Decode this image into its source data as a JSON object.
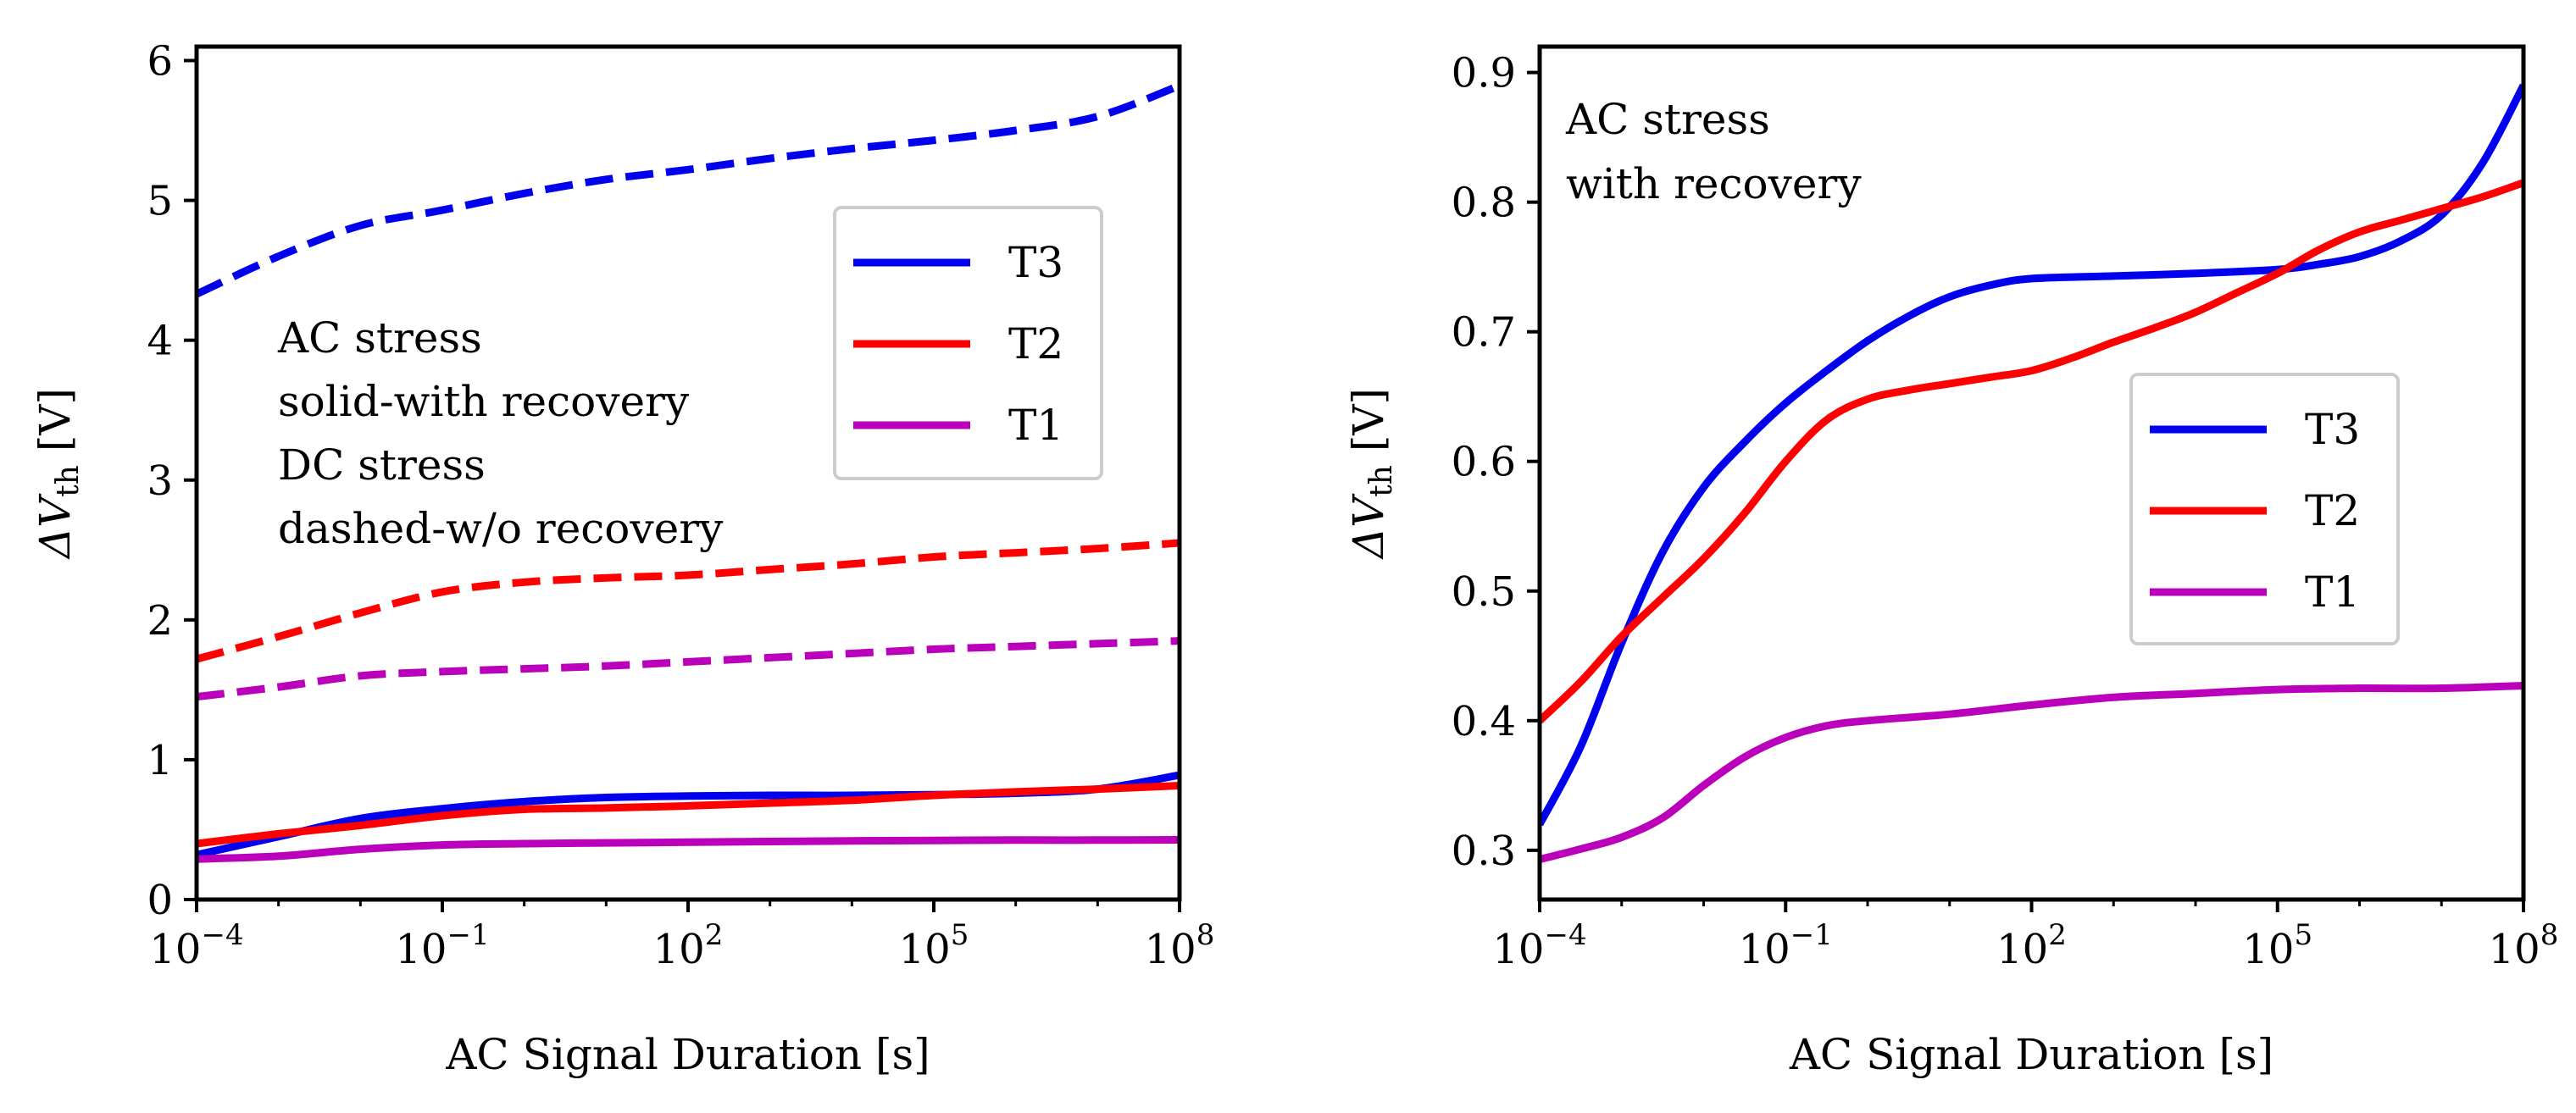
{
  "chart_data": [
    {
      "type": "line",
      "title": "",
      "xlabel": "AC Signal Duration [s]",
      "ylabel": "ΔV_th [V]",
      "xscale": "log",
      "xlim_exp": [
        -4,
        8
      ],
      "ylim": [
        0,
        6.1
      ],
      "xticks": [
        {
          "base": "10",
          "exp": "−4",
          "v": -4
        },
        {
          "base": "10",
          "exp": "−1",
          "v": -1
        },
        {
          "base": "10",
          "exp": "2",
          "v": 2
        },
        {
          "base": "10",
          "exp": "5",
          "v": 5
        },
        {
          "base": "10",
          "exp": "8",
          "v": 8
        }
      ],
      "yticks": [
        {
          "label": "0",
          "v": 0
        },
        {
          "label": "1",
          "v": 1
        },
        {
          "label": "2",
          "v": 2
        },
        {
          "label": "3",
          "v": 3
        },
        {
          "label": "4",
          "v": 4
        },
        {
          "label": "5",
          "v": 5
        },
        {
          "label": "6",
          "v": 6
        }
      ],
      "annotation": [
        "AC stress",
        "solid-with recovery",
        "DC stress",
        "dashed-w/o recovery"
      ],
      "legend": {
        "position": "upper-right",
        "entries": [
          "T3",
          "T2",
          "T1"
        ]
      },
      "series": [
        {
          "name": "T3",
          "style": "solid",
          "color": "#0000ee",
          "log10x": [
            -4,
            -3,
            -2,
            -1,
            0,
            1,
            2,
            3,
            4,
            5,
            6,
            7,
            8
          ],
          "y": [
            0.32,
            0.45,
            0.58,
            0.65,
            0.7,
            0.73,
            0.74,
            0.745,
            0.745,
            0.75,
            0.76,
            0.79,
            0.89
          ]
        },
        {
          "name": "T2",
          "style": "solid",
          "color": "#ff0000",
          "log10x": [
            -4,
            -3,
            -2,
            -1,
            0,
            1,
            2,
            3,
            4,
            5,
            6,
            7,
            8
          ],
          "y": [
            0.4,
            0.47,
            0.53,
            0.6,
            0.645,
            0.655,
            0.67,
            0.69,
            0.71,
            0.745,
            0.77,
            0.79,
            0.815
          ]
        },
        {
          "name": "T1",
          "style": "solid",
          "color": "#bb00bb",
          "log10x": [
            -4,
            -3,
            -2,
            -1,
            0,
            1,
            2,
            3,
            4,
            5,
            6,
            7,
            8
          ],
          "y": [
            0.29,
            0.31,
            0.36,
            0.39,
            0.4,
            0.405,
            0.41,
            0.415,
            0.42,
            0.423,
            0.425,
            0.425,
            0.427
          ]
        },
        {
          "name": "T3",
          "style": "dashed",
          "color": "#0000ee",
          "log10x": [
            -4,
            -3,
            -2,
            -1,
            0,
            1,
            2,
            3,
            4,
            5,
            6,
            7,
            8
          ],
          "y": [
            4.33,
            4.6,
            4.82,
            4.93,
            5.05,
            5.15,
            5.22,
            5.3,
            5.37,
            5.43,
            5.5,
            5.6,
            5.82
          ]
        },
        {
          "name": "T2",
          "style": "dashed",
          "color": "#ff0000",
          "log10x": [
            -4,
            -3,
            -2,
            -1,
            0,
            1,
            2,
            3,
            4,
            5,
            6,
            7,
            8
          ],
          "y": [
            1.72,
            1.88,
            2.05,
            2.2,
            2.27,
            2.3,
            2.32,
            2.36,
            2.4,
            2.45,
            2.48,
            2.51,
            2.55
          ]
        },
        {
          "name": "T1",
          "style": "dashed",
          "color": "#bb00bb",
          "log10x": [
            -4,
            -3,
            -2,
            -1,
            0,
            1,
            2,
            3,
            4,
            5,
            6,
            7,
            8
          ],
          "y": [
            1.45,
            1.52,
            1.6,
            1.63,
            1.65,
            1.67,
            1.7,
            1.73,
            1.76,
            1.79,
            1.81,
            1.83,
            1.85
          ]
        }
      ]
    },
    {
      "type": "line",
      "title": "",
      "xlabel": "AC Signal Duration [s]",
      "ylabel": "ΔV_th [V]",
      "xscale": "log",
      "xlim_exp": [
        -4,
        8
      ],
      "ylim": [
        0.262,
        0.92
      ],
      "xticks": [
        {
          "base": "10",
          "exp": "−4",
          "v": -4
        },
        {
          "base": "10",
          "exp": "−1",
          "v": -1
        },
        {
          "base": "10",
          "exp": "2",
          "v": 2
        },
        {
          "base": "10",
          "exp": "5",
          "v": 5
        },
        {
          "base": "10",
          "exp": "8",
          "v": 8
        }
      ],
      "yticks": [
        {
          "label": "0.3",
          "v": 0.3
        },
        {
          "label": "0.4",
          "v": 0.4
        },
        {
          "label": "0.5",
          "v": 0.5
        },
        {
          "label": "0.6",
          "v": 0.6
        },
        {
          "label": "0.7",
          "v": 0.7
        },
        {
          "label": "0.8",
          "v": 0.8
        },
        {
          "label": "0.9",
          "v": 0.9
        }
      ],
      "annotation": [
        "AC stress",
        "with recovery"
      ],
      "legend": {
        "position": "center-right",
        "entries": [
          "T3",
          "T2",
          "T1"
        ]
      },
      "series": [
        {
          "name": "T3",
          "style": "solid",
          "color": "#0000ee",
          "log10x": [
            -4,
            -3.5,
            -3,
            -2.5,
            -2,
            -1.5,
            -1,
            -0.5,
            0,
            0.5,
            1,
            1.5,
            2,
            3,
            4,
            5,
            5.5,
            6,
            6.5,
            7,
            7.5,
            8
          ],
          "y": [
            0.32,
            0.38,
            0.46,
            0.53,
            0.58,
            0.615,
            0.645,
            0.67,
            0.693,
            0.712,
            0.727,
            0.736,
            0.741,
            0.743,
            0.745,
            0.748,
            0.752,
            0.758,
            0.77,
            0.79,
            0.83,
            0.89
          ]
        },
        {
          "name": "T2",
          "style": "solid",
          "color": "#ff0000",
          "log10x": [
            -4,
            -3.5,
            -3,
            -2.5,
            -2,
            -1.5,
            -1,
            -0.5,
            0,
            0.5,
            1,
            1.5,
            2,
            2.5,
            3,
            3.5,
            4,
            4.5,
            5,
            5.5,
            6,
            6.5,
            7,
            7.5,
            8
          ],
          "y": [
            0.4,
            0.43,
            0.465,
            0.495,
            0.525,
            0.56,
            0.6,
            0.632,
            0.648,
            0.655,
            0.66,
            0.665,
            0.67,
            0.68,
            0.692,
            0.703,
            0.715,
            0.73,
            0.745,
            0.763,
            0.777,
            0.786,
            0.795,
            0.804,
            0.815
          ]
        },
        {
          "name": "T1",
          "style": "solid",
          "color": "#bb00bb",
          "log10x": [
            -4,
            -3.5,
            -3,
            -2.5,
            -2,
            -1.5,
            -1,
            -0.5,
            0,
            1,
            2,
            3,
            4,
            5,
            6,
            7,
            8
          ],
          "y": [
            0.293,
            0.301,
            0.31,
            0.325,
            0.35,
            0.372,
            0.387,
            0.396,
            0.4,
            0.405,
            0.412,
            0.418,
            0.421,
            0.424,
            0.425,
            0.425,
            0.427
          ]
        }
      ]
    }
  ]
}
